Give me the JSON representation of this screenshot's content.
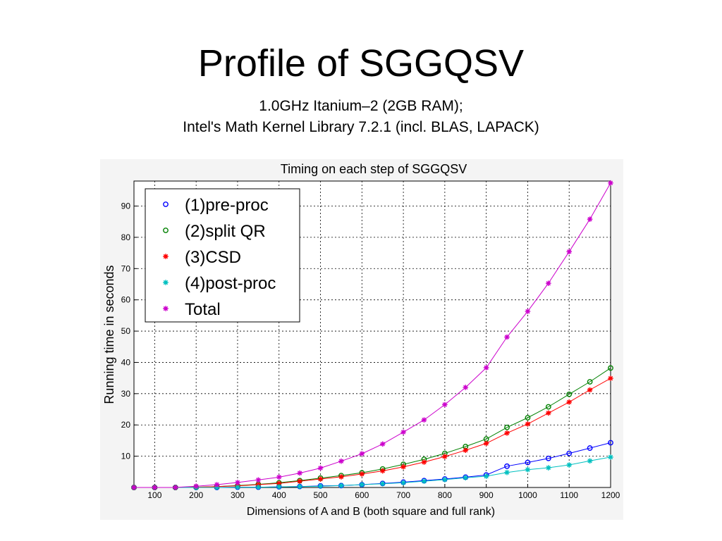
{
  "slide": {
    "title": "Profile of SGGQSV",
    "subtitle_line1": "1.0GHz Itanium–2  (2GB RAM);",
    "subtitle_line2": "Intel's Math Kernel Library 7.2.1 (incl. BLAS, LAPACK)"
  },
  "chart_data": {
    "type": "line",
    "title": "Timing on each step of SGGQSV",
    "xlabel": "Dimensions of A and B (both square and full rank)",
    "ylabel": "Running time in seconds",
    "xlim": [
      50,
      1200
    ],
    "ylim": [
      0,
      98
    ],
    "xticks": [
      100,
      200,
      300,
      400,
      500,
      600,
      700,
      800,
      900,
      1000,
      1100,
      1200
    ],
    "yticks": [
      10,
      20,
      30,
      40,
      50,
      60,
      70,
      80,
      90
    ],
    "grid": true,
    "legend_position": "top-left",
    "x": [
      50,
      100,
      150,
      200,
      250,
      300,
      350,
      400,
      450,
      500,
      550,
      600,
      650,
      700,
      750,
      800,
      850,
      900,
      950,
      1000,
      1050,
      1100,
      1150,
      1200
    ],
    "series": [
      {
        "name": "(1)pre-proc",
        "marker": "circle",
        "color": "#0000ff",
        "values": [
          0,
          0,
          0,
          0,
          0,
          0.1,
          0.1,
          0.2,
          0.3,
          0.5,
          0.6,
          0.9,
          1.3,
          1.7,
          2.2,
          2.7,
          3.3,
          4.0,
          6.8,
          8.0,
          9.3,
          10.9,
          12.6,
          14.3
        ]
      },
      {
        "name": "(2)split QR",
        "marker": "circle",
        "color": "#008000",
        "values": [
          0,
          0,
          0,
          0.1,
          0.3,
          0.6,
          1.0,
          1.5,
          2.2,
          3.0,
          3.8,
          4.7,
          5.9,
          7.4,
          9.0,
          10.9,
          13.1,
          15.5,
          19.2,
          22.3,
          25.8,
          29.8,
          33.8,
          38.2
        ]
      },
      {
        "name": "(3)CSD",
        "marker": "star",
        "color": "#ff0000",
        "values": [
          0,
          0,
          0,
          0.1,
          0.3,
          0.5,
          0.9,
          1.3,
          2.0,
          2.7,
          3.4,
          4.3,
          5.3,
          6.6,
          8.1,
          9.9,
          11.9,
          14.1,
          17.4,
          20.3,
          23.8,
          27.3,
          31.2,
          34.9
        ]
      },
      {
        "name": "(4)post-proc",
        "marker": "star",
        "color": "#00c0c0",
        "values": [
          0,
          0,
          0,
          0,
          0,
          0.1,
          0.1,
          0.2,
          0.3,
          0.4,
          0.6,
          0.9,
          1.2,
          1.5,
          2.0,
          2.5,
          3.1,
          3.6,
          4.8,
          5.7,
          6.3,
          7.2,
          8.5,
          9.7
        ]
      },
      {
        "name": "Total",
        "marker": "star",
        "color": "#cc00cc",
        "values": [
          0,
          0,
          0,
          0.4,
          0.9,
          1.6,
          2.4,
          3.3,
          4.6,
          6.2,
          8.4,
          10.8,
          13.9,
          17.7,
          21.6,
          26.5,
          32.0,
          38.3,
          48.1,
          56.3,
          65.3,
          75.4,
          85.8,
          97.4
        ]
      }
    ]
  }
}
